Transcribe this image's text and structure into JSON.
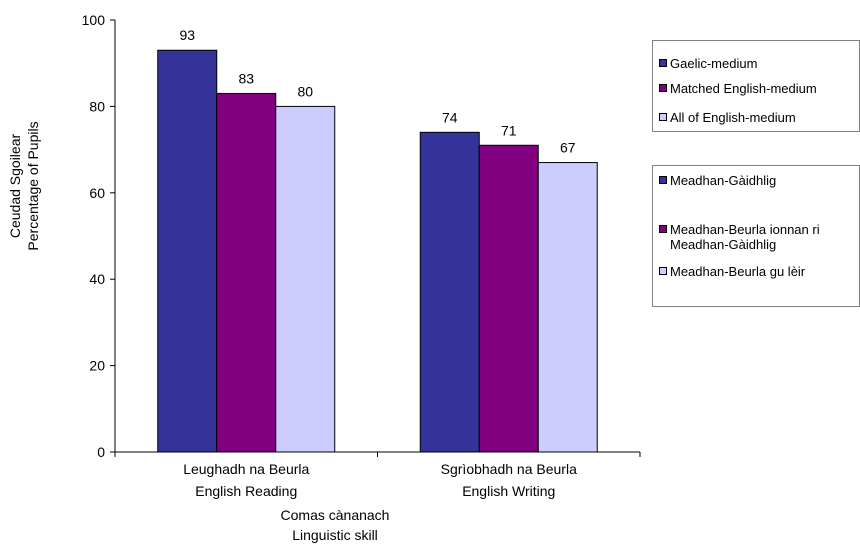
{
  "chart_data": {
    "type": "bar",
    "categories": [
      [
        "Leughadh na Beurla",
        "English Reading"
      ],
      [
        "Sgrìobhadh na Beurla",
        "English Writing"
      ]
    ],
    "series": [
      {
        "name": "Gaelic-medium",
        "values": [
          93,
          74
        ],
        "color": "#333399"
      },
      {
        "name": "Matched English-medium",
        "values": [
          83,
          71
        ],
        "color": "#800080"
      },
      {
        "name": "All of English-medium",
        "values": [
          80,
          67
        ],
        "color": "#ccccff"
      }
    ],
    "ylabel": [
      "Ceudad Sgoilear",
      "Percentage of Pupils"
    ],
    "xlabel": [
      "Comas cànanach",
      "Linguistic skill"
    ],
    "ylim": [
      0,
      100
    ],
    "yticks": [
      0,
      20,
      40,
      60,
      80,
      100
    ],
    "grid": false,
    "legend_placement": "right"
  },
  "legend_english": [
    "Gaelic-medium",
    "Matched English-medium",
    "All of English-medium"
  ],
  "legend_gaelic": [
    "Meadhan-Gàidhlig",
    "Meadhan-Beurla ionnan ri Meadhan-Gàidhlig",
    "Meadhan-Beurla gu lèir"
  ]
}
